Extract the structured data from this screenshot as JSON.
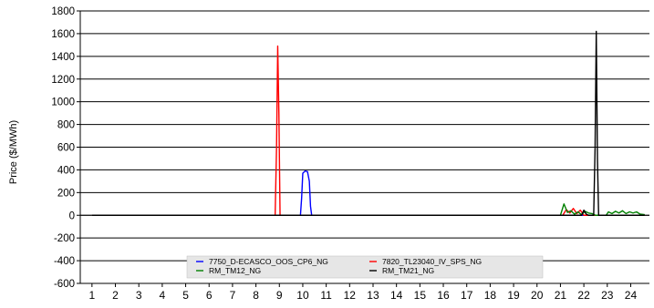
{
  "chart_data": {
    "type": "line",
    "title": "",
    "xlabel": "",
    "ylabel": "Price ($/MWh)",
    "xlim": [
      0.5,
      24.8
    ],
    "ylim": [
      -600,
      1800
    ],
    "x_ticks": [
      1,
      2,
      3,
      4,
      5,
      6,
      7,
      8,
      9,
      10,
      11,
      12,
      13,
      14,
      15,
      16,
      17,
      18,
      19,
      20,
      21,
      22,
      23,
      24
    ],
    "y_ticks": [
      -600,
      -400,
      -200,
      0,
      200,
      400,
      600,
      800,
      1000,
      1200,
      1400,
      1600,
      1800
    ],
    "grid": "horizontal",
    "legend_position": "bottom-center",
    "series": [
      {
        "name": "7750_D-ECASCO_OOS_CP6_NG",
        "color": "#0000ff",
        "points": [
          [
            1,
            0
          ],
          [
            9.9,
            0
          ],
          [
            9.95,
            150
          ],
          [
            10.0,
            370
          ],
          [
            10.1,
            390
          ],
          [
            10.2,
            385
          ],
          [
            10.28,
            300
          ],
          [
            10.33,
            80
          ],
          [
            10.38,
            0
          ],
          [
            24.6,
            0
          ]
        ]
      },
      {
        "name": "7820_TL23040_IV_SPS_NG",
        "color": "#ff0000",
        "points": [
          [
            1,
            0
          ],
          [
            8.82,
            0
          ],
          [
            8.88,
            600
          ],
          [
            8.93,
            1490
          ],
          [
            8.98,
            900
          ],
          [
            9.03,
            0
          ],
          [
            21.1,
            0
          ],
          [
            21.25,
            50
          ],
          [
            21.4,
            20
          ],
          [
            21.55,
            60
          ],
          [
            21.7,
            15
          ],
          [
            21.85,
            45
          ],
          [
            22.0,
            0
          ],
          [
            24.6,
            0
          ]
        ]
      },
      {
        "name": "RM_TM12_NG",
        "color": "#008000",
        "points": [
          [
            1,
            0
          ],
          [
            21.0,
            0
          ],
          [
            21.15,
            100
          ],
          [
            21.3,
            25
          ],
          [
            21.45,
            40
          ],
          [
            21.6,
            10
          ],
          [
            21.75,
            30
          ],
          [
            21.9,
            5
          ],
          [
            22.05,
            35
          ],
          [
            22.2,
            20
          ],
          [
            22.35,
            15
          ],
          [
            22.5,
            0
          ],
          [
            22.95,
            0
          ],
          [
            23.05,
            30
          ],
          [
            23.2,
            15
          ],
          [
            23.35,
            35
          ],
          [
            23.5,
            20
          ],
          [
            23.65,
            40
          ],
          [
            23.8,
            15
          ],
          [
            23.95,
            30
          ],
          [
            24.1,
            20
          ],
          [
            24.25,
            30
          ],
          [
            24.4,
            10
          ],
          [
            24.6,
            5
          ]
        ]
      },
      {
        "name": "RM_TM21_NG",
        "color": "#000000",
        "points": [
          [
            1,
            0
          ],
          [
            21.9,
            0
          ],
          [
            22.0,
            45
          ],
          [
            22.1,
            10
          ],
          [
            22.2,
            0
          ],
          [
            22.42,
            0
          ],
          [
            22.48,
            600
          ],
          [
            22.53,
            1620
          ],
          [
            22.58,
            500
          ],
          [
            22.63,
            0
          ],
          [
            24.6,
            0
          ]
        ]
      }
    ]
  }
}
